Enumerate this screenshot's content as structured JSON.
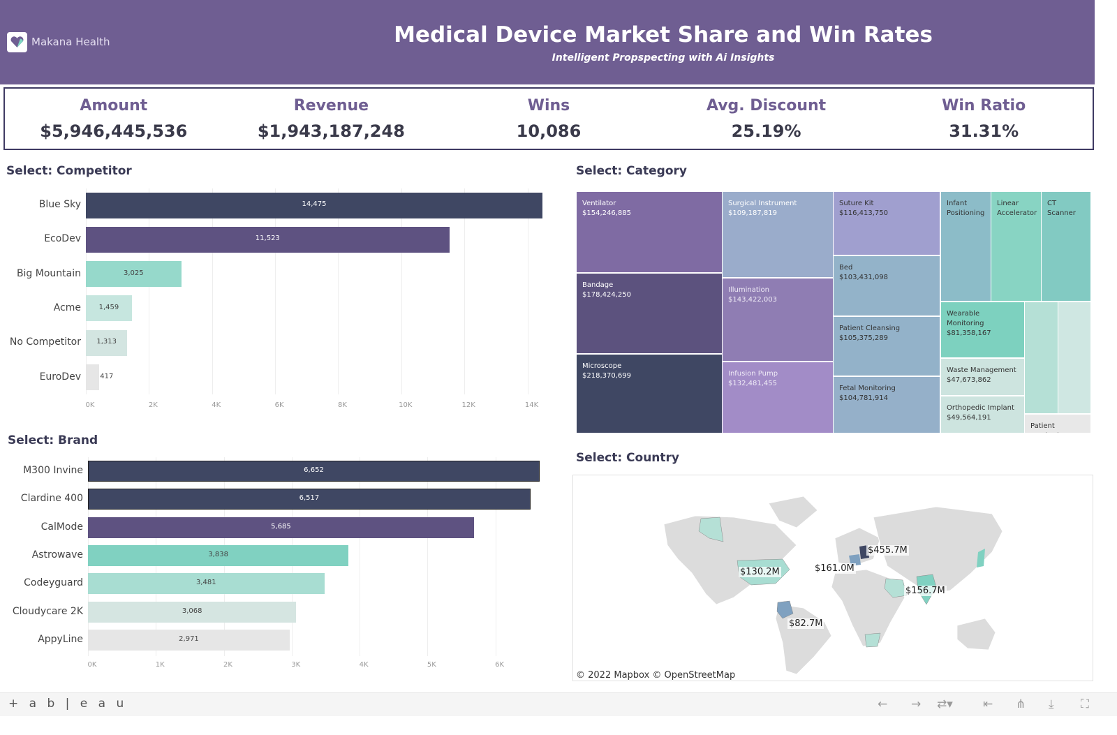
{
  "header": {
    "brand": "Makana Health",
    "title": "Medical Device Market Share and Win Rates",
    "subtitle": "Intelligent Propspecting with Ai Insights",
    "color": "#6f5e92"
  },
  "kpis": [
    {
      "label": "Amount",
      "value": "$5,946,445,536"
    },
    {
      "label": "Revenue",
      "value": "$1,943,187,248"
    },
    {
      "label": "Wins",
      "value": "10,086"
    },
    {
      "label": "Avg. Discount",
      "value": "25.19%"
    },
    {
      "label": "Win Ratio",
      "value": "31.31%"
    }
  ],
  "sections": {
    "competitor": "Select:  Competitor",
    "brand": "Select:  Brand",
    "category": "Select:  Category",
    "country": "Select:  Country"
  },
  "chart_data": [
    {
      "type": "bar",
      "orientation": "horizontal",
      "title": "Select:  Competitor",
      "categories": [
        "Blue Sky",
        "EcoDev",
        "Big Mountain",
        "Acme",
        "No Competitor",
        "EuroDev"
      ],
      "values": [
        14475,
        11523,
        3025,
        1459,
        1313,
        417
      ],
      "value_labels": [
        "14,475",
        "11,523",
        "3,025",
        "1,459",
        "1,313",
        "417"
      ],
      "colors": [
        "#3f4763",
        "#5e5281",
        "#96d9cb",
        "#c6e6df",
        "#d3e5e1",
        "#e6e6e6"
      ],
      "xlim": [
        0,
        15000
      ],
      "ticks": [
        "0K",
        "2K",
        "4K",
        "6K",
        "8K",
        "10K",
        "12K",
        "14K"
      ],
      "grid": true
    },
    {
      "type": "bar",
      "orientation": "horizontal",
      "title": "Select:  Brand",
      "categories": [
        "M300 Invine",
        "Clardine 400",
        "CalMode",
        "Astrowave",
        "Codeyguard",
        "Cloudycare 2K",
        "AppyLine"
      ],
      "values": [
        6652,
        6517,
        5685,
        3838,
        3481,
        3068,
        2971
      ],
      "value_labels": [
        "6,652",
        "6,517",
        "5,685",
        "3,838",
        "3,481",
        "3,068",
        "2,971"
      ],
      "colors": [
        "#3f4763",
        "#3f4763",
        "#5e5281",
        "#80d1c1",
        "#a8ddd2",
        "#d5e5e1",
        "#e6e6e6"
      ],
      "xlim": [
        0,
        7000
      ],
      "ticks": [
        "0K",
        "1K",
        "2K",
        "3K",
        "4K",
        "5K",
        "6K"
      ],
      "grid": true
    }
  ],
  "treemap": [
    {
      "name": "Ventilator",
      "value": "$154,246,885",
      "color": "#7f6ba3"
    },
    {
      "name": "Bandage",
      "value": "$178,424,250",
      "color": "#5c527e"
    },
    {
      "name": "Microscope",
      "value": "$218,370,699",
      "color": "#3f4763"
    },
    {
      "name": "Surgical Instrument",
      "value": "$109,187,819",
      "color": "#9aaccb"
    },
    {
      "name": "Illumination",
      "value": "$143,422,003",
      "color": "#8f7db3"
    },
    {
      "name": "Infusion Pump",
      "value": "$132,481,455",
      "color": "#a28cc7"
    },
    {
      "name": "Suture Kit",
      "value": "$116,413,750",
      "color": "#a09fcf"
    },
    {
      "name": "Bed",
      "value": "$103,431,098",
      "color": "#93b3c9"
    },
    {
      "name": "Patient Cleansing",
      "value": "$105,375,289",
      "color": "#93b2c9"
    },
    {
      "name": "Fetal Monitoring",
      "value": "$104,781,914",
      "color": "#95b0c9"
    },
    {
      "name": "Infant Positioning",
      "value": "",
      "color": "#8cbcc8"
    },
    {
      "name": "Linear Accelerator",
      "value": "",
      "color": "#88d4c3"
    },
    {
      "name": "CT Scanner",
      "value": "",
      "color": "#82cac2"
    },
    {
      "name": "Wearable Monitoring",
      "value": "$81,358,167",
      "color": "#7dd1bf"
    },
    {
      "name": "Waste Management",
      "value": "$47,673,862",
      "color": "#cde4df"
    },
    {
      "name": "Orthopedic Implant",
      "value": "$49,564,191",
      "color": "#cde4df"
    },
    {
      "name": "",
      "value": "",
      "color": "#b5e0d6"
    },
    {
      "name": "",
      "value": "",
      "color": "#cfe7e2"
    },
    {
      "name": "Patient Monitoring",
      "value": "",
      "color": "#e8e8e8"
    }
  ],
  "map": {
    "labels": [
      "$455.7M",
      "$161.0M",
      "$130.2M",
      "$156.7M",
      "$82.7M"
    ],
    "credit": "© 2022 Mapbox  © OpenStreetMap"
  },
  "footer": {
    "logo": "+ a b | e a u"
  }
}
